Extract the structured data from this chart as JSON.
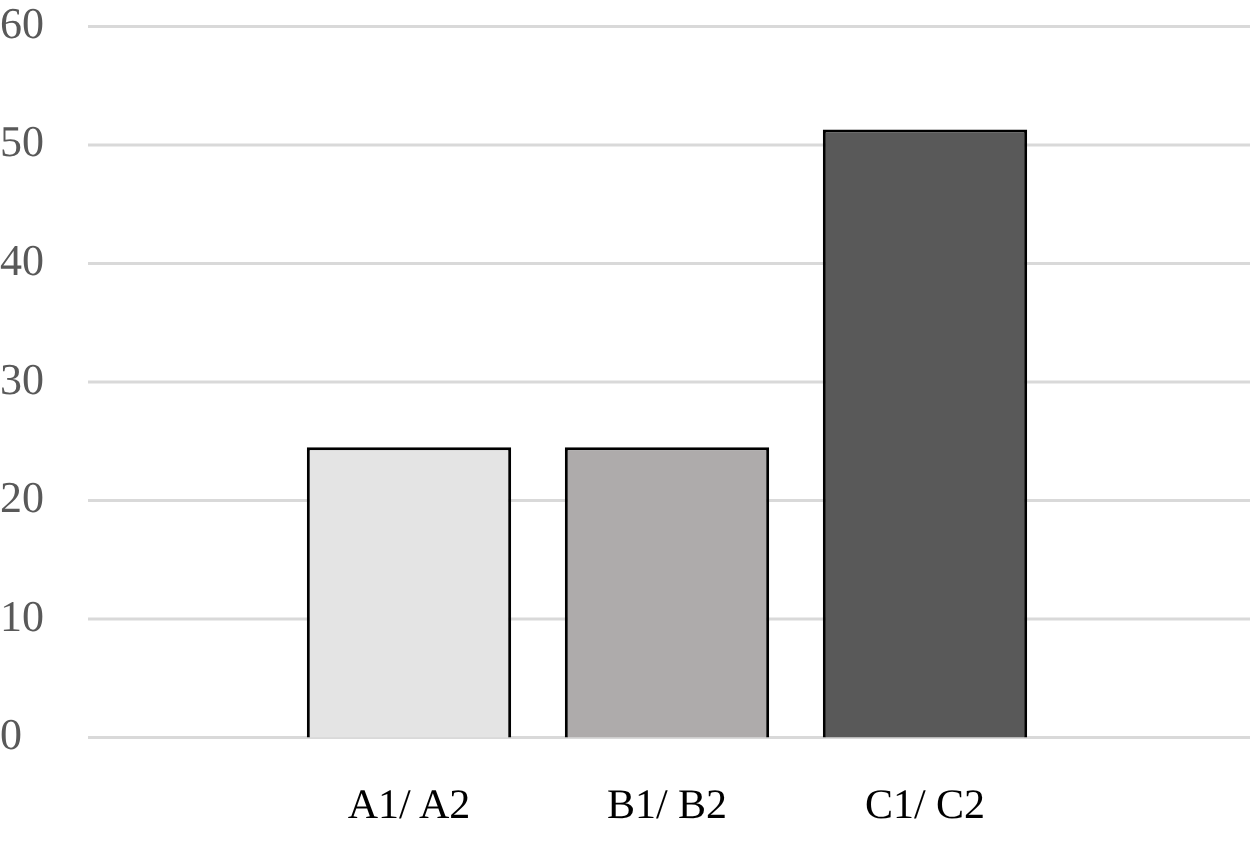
{
  "chart_data": {
    "type": "bar",
    "categories": [
      "A1/ A2",
      "B1/ B2",
      "C1/ C2"
    ],
    "values": [
      24.5,
      24.5,
      51.3
    ],
    "colors": [
      "#e4e4e4",
      "#aeabab",
      "#595959"
    ],
    "ylim": [
      0,
      60
    ],
    "yticks": [
      0,
      10,
      20,
      30,
      40,
      50,
      60
    ],
    "grid": "y",
    "legend": false
  }
}
